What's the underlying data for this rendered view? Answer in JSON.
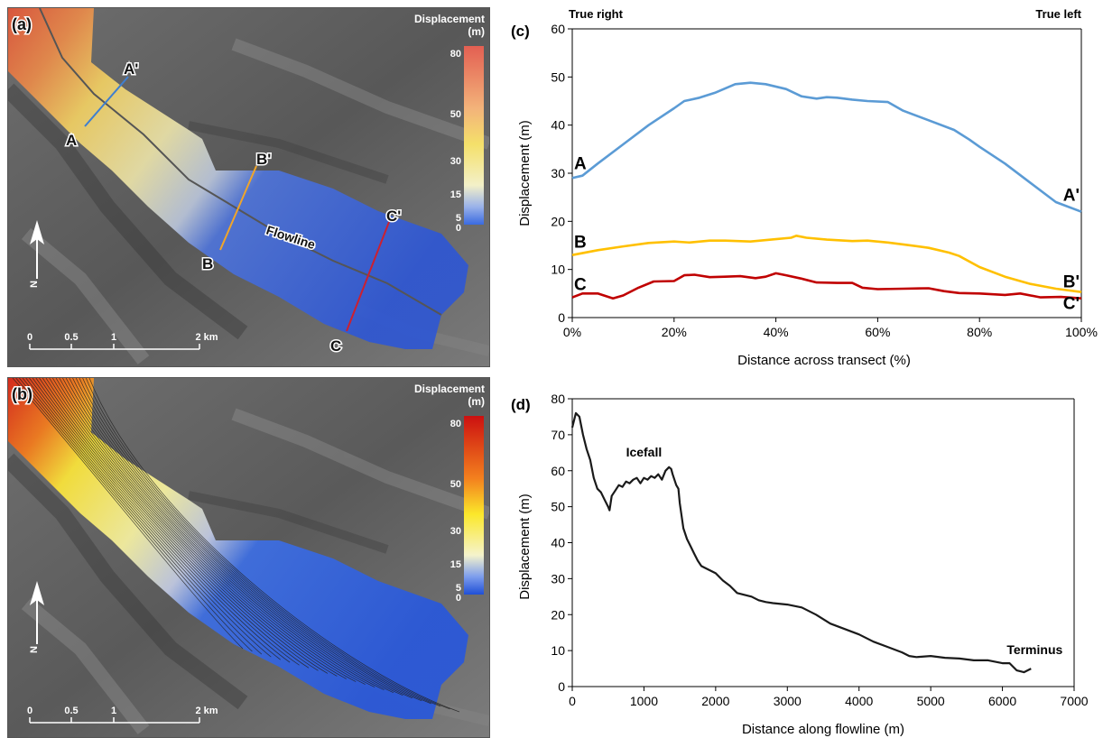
{
  "panel_a": {
    "label": "(a)",
    "legend_title_1": "Displacement",
    "legend_title_2": "(m)",
    "legend_ticks": [
      "80",
      "50",
      "30",
      "15",
      "5",
      "0"
    ],
    "transect_labels": [
      "A",
      "A'",
      "B",
      "B'",
      "C",
      "C'"
    ],
    "flowline_label": "Flowline",
    "north_label": "N",
    "scale_labels": [
      "0",
      "0.5",
      "1",
      "2 km"
    ]
  },
  "panel_b": {
    "label": "(b)",
    "legend_title_1": "Displacement",
    "legend_title_2": "(m)",
    "legend_ticks": [
      "80",
      "50",
      "30",
      "15",
      "5",
      "0"
    ],
    "north_label": "N",
    "scale_labels": [
      "0",
      "0.5",
      "1",
      "2 km"
    ]
  },
  "chart_data": [
    {
      "panel": "(c)",
      "type": "line",
      "xlabel": "Distance across transect (%)",
      "ylabel": "Displacement (m)",
      "xlim": [
        0,
        100
      ],
      "ylim": [
        0,
        60
      ],
      "xticks": [
        "0%",
        "20%",
        "40%",
        "60%",
        "80%",
        "100%"
      ],
      "yticks": [
        "0",
        "10",
        "20",
        "30",
        "40",
        "50",
        "60"
      ],
      "corner_left": "True right",
      "corner_right": "True left",
      "grid": false,
      "series": [
        {
          "name": "A",
          "end_label": "A'",
          "color": "#5b9bd5",
          "x": [
            0,
            2,
            5,
            10,
            15,
            20,
            22,
            25,
            28,
            32,
            35,
            38,
            42,
            45,
            48,
            50,
            52,
            55,
            58,
            62,
            65,
            70,
            75,
            78,
            80,
            85,
            90,
            95,
            100
          ],
          "y": [
            29,
            29.5,
            32,
            36,
            40,
            43.5,
            45,
            45.7,
            46.7,
            48.5,
            48.8,
            48.5,
            47.5,
            46,
            45.5,
            45.8,
            45.7,
            45.3,
            45,
            44.8,
            43,
            41,
            39,
            37,
            35.5,
            32,
            28,
            24,
            22
          ]
        },
        {
          "name": "B",
          "end_label": "B'",
          "color": "#ffc000",
          "x": [
            0,
            5,
            10,
            15,
            20,
            23,
            27,
            30,
            35,
            40,
            43,
            44,
            46,
            50,
            55,
            58,
            62,
            65,
            70,
            74,
            76,
            80,
            85,
            90,
            95,
            100
          ],
          "y": [
            13,
            14,
            14.8,
            15.5,
            15.8,
            15.6,
            16,
            16,
            15.8,
            16.3,
            16.6,
            17,
            16.6,
            16.2,
            15.9,
            16,
            15.6,
            15.2,
            14.5,
            13.5,
            12.8,
            10.5,
            8.5,
            7,
            6,
            5.3
          ]
        },
        {
          "name": "C",
          "end_label": "C'",
          "color": "#c00000",
          "x": [
            0,
            2,
            5,
            8,
            10,
            13,
            16,
            20,
            22,
            24,
            27,
            30,
            33,
            36,
            38,
            40,
            42,
            45,
            48,
            52,
            55,
            57,
            60,
            65,
            70,
            73,
            76,
            80,
            85,
            88,
            92,
            96,
            100
          ],
          "y": [
            4.2,
            5,
            5,
            4,
            4.6,
            6.2,
            7.5,
            7.6,
            8.8,
            8.9,
            8.4,
            8.5,
            8.6,
            8.2,
            8.5,
            9.2,
            8.8,
            8.1,
            7.3,
            7.2,
            7.2,
            6.2,
            5.9,
            6,
            6.1,
            5.5,
            5.1,
            5,
            4.7,
            5,
            4.2,
            4.3,
            4
          ]
        }
      ]
    },
    {
      "panel": "(d)",
      "type": "line",
      "xlabel": "Distance along flowline (m)",
      "ylabel": "Displacement (m)",
      "xlim": [
        0,
        7000
      ],
      "ylim": [
        0,
        80
      ],
      "xticks": [
        "0",
        "1000",
        "2000",
        "3000",
        "4000",
        "5000",
        "6000",
        "7000"
      ],
      "yticks": [
        "0",
        "10",
        "20",
        "30",
        "40",
        "50",
        "60",
        "70",
        "80"
      ],
      "grid": false,
      "annotations": [
        {
          "text": "Icefall",
          "x": 1000,
          "y": 64
        },
        {
          "text": "Terminus",
          "x": 6450,
          "y": 9
        }
      ],
      "series": [
        {
          "color": "#1a1a1a",
          "x": [
            0,
            50,
            100,
            150,
            200,
            250,
            300,
            350,
            400,
            450,
            500,
            520,
            550,
            600,
            650,
            700,
            750,
            800,
            850,
            900,
            950,
            1000,
            1050,
            1100,
            1150,
            1200,
            1250,
            1300,
            1350,
            1380,
            1400,
            1450,
            1480,
            1500,
            1550,
            1600,
            1650,
            1700,
            1750,
            1800,
            1850,
            1900,
            1950,
            2000,
            2100,
            2200,
            2300,
            2400,
            2500,
            2600,
            2700,
            2800,
            3000,
            3200,
            3400,
            3600,
            3800,
            4000,
            4200,
            4400,
            4600,
            4700,
            4800,
            5000,
            5200,
            5400,
            5600,
            5800,
            6000,
            6100,
            6200,
            6300,
            6400
          ],
          "y": [
            72,
            76,
            75,
            70,
            66,
            63,
            58,
            55,
            54,
            52,
            50,
            49,
            53,
            54.5,
            56,
            55.5,
            57,
            56.5,
            57.5,
            58,
            56.5,
            58,
            57.5,
            58.5,
            58,
            59,
            57.5,
            60,
            61,
            60.5,
            59,
            56,
            55,
            51,
            44,
            41,
            39,
            37,
            35,
            33.5,
            33,
            32.5,
            32,
            31.5,
            29.5,
            28,
            26,
            25.5,
            25,
            24,
            23.5,
            23.2,
            22.8,
            22,
            20,
            17.5,
            16,
            14.5,
            12.5,
            11,
            9.5,
            8.5,
            8.2,
            8.5,
            8,
            7.8,
            7.3,
            7.3,
            6.5,
            6.5,
            4.5,
            4,
            5
          ]
        }
      ]
    }
  ]
}
